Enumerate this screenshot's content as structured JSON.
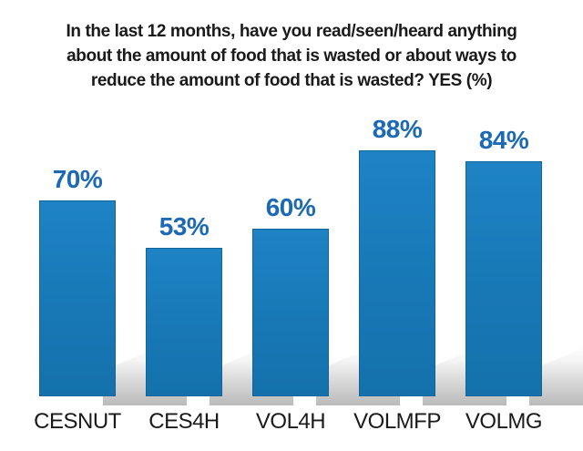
{
  "chart_data": {
    "type": "bar",
    "orientation": "vertical",
    "title": "In the last 12 months, have you read/seen/heard anything about the amount of food that is wasted or about ways to reduce the amount of food that is wasted? YES (%)",
    "title_lines": [
      "In the last 12 months, have you read/seen/heard anything",
      "about the amount of food that is wasted or about ways to",
      "reduce the amount of food that is wasted? YES (%)"
    ],
    "categories": [
      "CESNUT",
      "CES4H",
      "VOL4H",
      "VOLMFP",
      "VOLMG"
    ],
    "values": [
      70,
      53,
      60,
      88,
      84
    ],
    "value_labels": [
      "70%",
      "53%",
      "60%",
      "88%",
      "84%"
    ],
    "ylim": [
      0,
      100
    ],
    "grid": false,
    "legend": false,
    "axis_lines": false,
    "bar_color": "#1878b6",
    "value_label_color": "#1d6ab4",
    "title_color": "#1a1a1a",
    "category_label_color": "#1a1a1a",
    "shadow_color": "#9a9a9a",
    "background_color": "#ffffff"
  }
}
